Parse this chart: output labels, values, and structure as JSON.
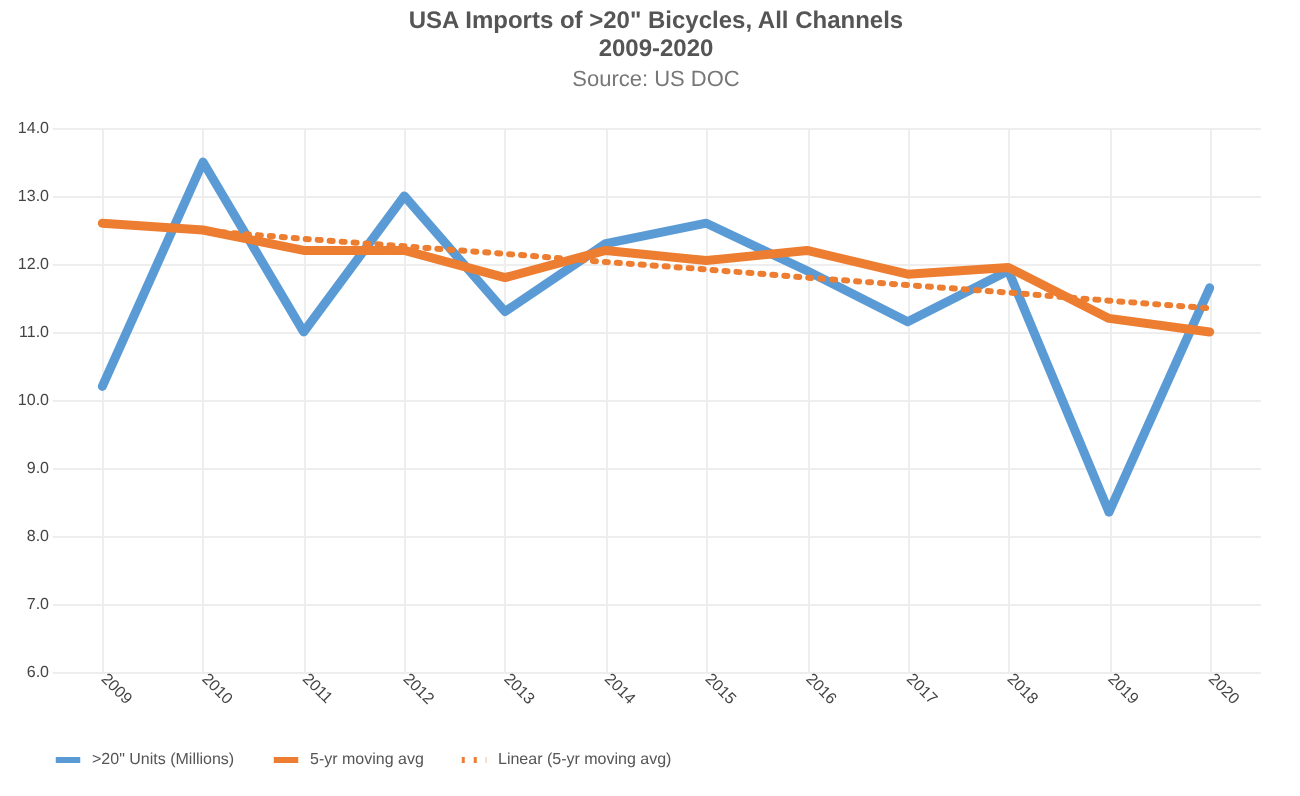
{
  "chart_data": {
    "type": "line",
    "title": "USA Imports of >20\" Bicycles, All Channels\n2009-2020",
    "subtitle": "Source: US DOC",
    "categories": [
      "2009",
      "2010",
      "2011",
      "2012",
      "2013",
      "2014",
      "2015",
      "2016",
      "2017",
      "2018",
      "2019",
      "2020"
    ],
    "series": [
      {
        "name": ">20\" Units (Millions)",
        "color": "#5b9bd5",
        "line_style": "solid",
        "values": [
          10.2,
          13.5,
          11.0,
          13.0,
          11.3,
          12.3,
          12.6,
          11.9,
          11.15,
          11.9,
          8.35,
          11.65
        ]
      },
      {
        "name": "5-yr moving avg",
        "color": "#ed7d31",
        "line_style": "solid",
        "values": [
          12.6,
          12.5,
          12.2,
          12.2,
          11.8,
          12.2,
          12.05,
          12.2,
          11.85,
          11.95,
          11.2,
          11.0
        ]
      },
      {
        "name": "Linear (5-yr moving avg)",
        "color": "#ed7d31",
        "line_style": "dotted",
        "values": [
          12.6,
          12.49,
          12.37,
          12.26,
          12.15,
          12.03,
          11.92,
          11.8,
          11.69,
          11.58,
          11.46,
          11.35
        ]
      }
    ],
    "ylim": [
      6,
      14
    ],
    "yticks": [
      {
        "value": 6,
        "label": "6.0"
      },
      {
        "value": 7,
        "label": "7.0"
      },
      {
        "value": 8,
        "label": "8.0"
      },
      {
        "value": 9,
        "label": "9.0"
      },
      {
        "value": 10,
        "label": "10.0"
      },
      {
        "value": 11,
        "label": "11.0"
      },
      {
        "value": 12,
        "label": "12.0"
      },
      {
        "value": 13,
        "label": "13.0"
      },
      {
        "value": 14,
        "label": "14.0"
      }
    ],
    "grid": true,
    "legend": "bottom"
  }
}
